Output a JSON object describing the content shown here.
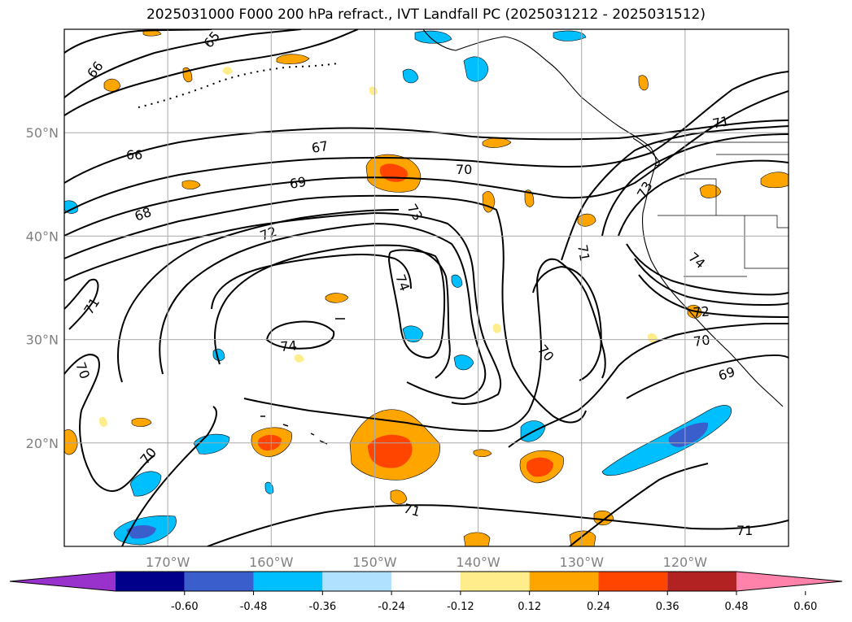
{
  "title": "2025031000 F000 200 hPa refract., IVT Landfall PC (2025031212 - 2025031512)",
  "map": {
    "lon_range": [
      180,
      110
    ],
    "lat_range": [
      10,
      60
    ],
    "lon_ticks": [
      {
        "value": 170,
        "label": "170°W"
      },
      {
        "value": 160,
        "label": "160°W"
      },
      {
        "value": 150,
        "label": "150°W"
      },
      {
        "value": 140,
        "label": "140°W"
      },
      {
        "value": 130,
        "label": "130°W"
      },
      {
        "value": 120,
        "label": "120°W"
      }
    ],
    "lat_ticks": [
      {
        "value": 50,
        "label": "50°N"
      },
      {
        "value": 40,
        "label": "40°N"
      },
      {
        "value": 30,
        "label": "30°N"
      },
      {
        "value": 20,
        "label": "20°N"
      }
    ],
    "contour_labels": [
      "65",
      "66",
      "66",
      "67",
      "68",
      "69",
      "70",
      "73",
      "72",
      "71",
      "74",
      "74",
      "71",
      "70",
      "71",
      "73",
      "74",
      "72",
      "70",
      "69",
      "70",
      "70",
      "71",
      "71"
    ]
  },
  "colorbar": {
    "colors": [
      "#9932cc",
      "#00008b",
      "#3a5fcd",
      "#00bfff",
      "#b0e2ff",
      "#ffffff",
      "#ffec8b",
      "#ffa500",
      "#ff4500",
      "#b22222",
      "#ff82ab"
    ],
    "tick_labels": [
      "-0.60",
      "-0.48",
      "-0.36",
      "-0.24",
      "-0.12",
      "0.12",
      "0.24",
      "0.36",
      "0.48",
      "0.60"
    ]
  }
}
